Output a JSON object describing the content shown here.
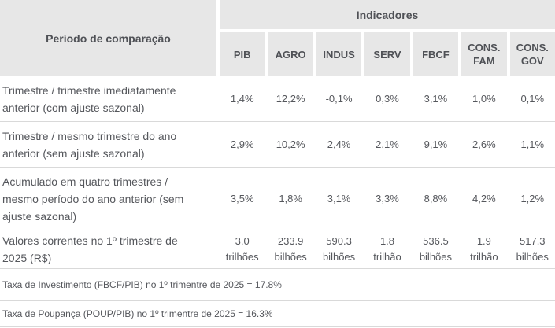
{
  "chart_data": {
    "type": "table",
    "header": {
      "period_label": "Período de comparação",
      "indicators_label": "Indicadores"
    },
    "columns": [
      "PIB",
      "AGRO",
      "INDUS",
      "SERV",
      "FBCF",
      "CONS.\nFAM",
      "CONS.\nGOV"
    ],
    "rows": [
      {
        "label": "Trimestre / trimestre imediatamente\nanterior (com ajuste sazonal)",
        "values": [
          "1,4%",
          "12,2%",
          "-0,1%",
          "0,3%",
          "3,1%",
          "1,0%",
          "0,1%"
        ]
      },
      {
        "label": "Trimestre / mesmo trimestre do ano\nanterior (sem ajuste sazonal)",
        "values": [
          "2,9%",
          "10,2%",
          "2,4%",
          "2,1%",
          "9,1%",
          "2,6%",
          "1,1%"
        ]
      },
      {
        "label": "Acumulado em quatro trimestres /\nmesmo período do ano anterior (sem\najuste sazonal)",
        "values": [
          "3,5%",
          "1,8%",
          "3,1%",
          "3,3%",
          "8,8%",
          "4,2%",
          "1,2%"
        ]
      },
      {
        "label": "Valores correntes no 1º trimestre de\n2025 (R$)",
        "values": [
          "3.0\ntrilhões",
          "233.9\nbilhões",
          "590.3\nbilhões",
          "1.8\ntrilhão",
          "536.5\nbilhões",
          "1.9\ntrilhão",
          "517.3\nbilhões"
        ]
      }
    ],
    "footnotes": [
      "Taxa de Investimento (FBCF/PIB) no 1º trimentre de 2025 = 17.8%",
      "Taxa de Poupança (POUP/PIB) no 1º trimentre de 2025 = 16.3%"
    ]
  },
  "colors": {
    "header_bg": "#e7e7e7",
    "border": "#d9d9d9",
    "header_text": "#4f5156",
    "body_text": "#55575c"
  }
}
